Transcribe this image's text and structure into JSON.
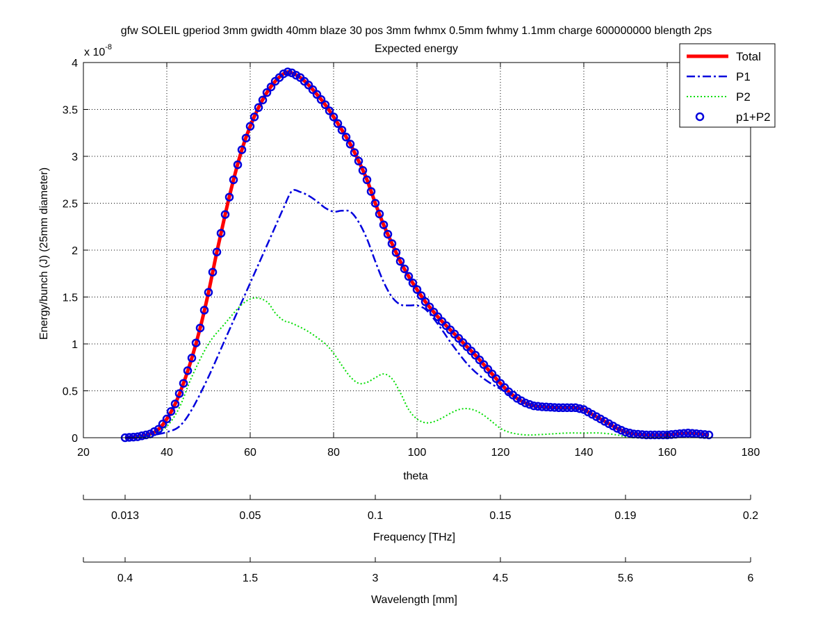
{
  "chart_data": {
    "type": "line",
    "title": "gfw SOLEIL gperiod 3mm gwidth 40mm blaze 30 pos 3mm fwhmx 0.5mm fwhmy 1.1mm charge 600000000 blength 2ps",
    "subtitle": "Expected energy",
    "xlabel": "theta",
    "ylabel": "Energy/bunch (J) (25mm diameter)",
    "y_exponent_base": "x 10",
    "y_exponent_power": "-8",
    "xlim": [
      20,
      180
    ],
    "ylim": [
      0,
      4
    ],
    "x_ticks": [
      20,
      40,
      60,
      80,
      100,
      120,
      140,
      160,
      180
    ],
    "y_ticks": [
      0,
      0.5,
      1,
      1.5,
      2,
      2.5,
      3,
      3.5,
      4
    ],
    "grid": true,
    "legend_position": "top-right",
    "secondary_axes": [
      {
        "label": "Frequency [THz]",
        "tick_positions_theta": [
          30,
          60,
          90,
          120,
          150,
          180
        ],
        "tick_labels": [
          "0.013",
          "0.05",
          "0.1",
          "0.15",
          "0.19",
          "0.2"
        ]
      },
      {
        "label": "Wavelength [mm]",
        "tick_positions_theta": [
          30,
          60,
          90,
          120,
          150,
          180
        ],
        "tick_labels": [
          "0.4",
          "1.5",
          "3",
          "4.5",
          "5.6",
          "6"
        ]
      }
    ],
    "series": [
      {
        "name": "Total",
        "color": "#ff0000",
        "style": "solid-thick",
        "points": [
          [
            30,
            0.0
          ],
          [
            33,
            0.01
          ],
          [
            36,
            0.04
          ],
          [
            38,
            0.09
          ],
          [
            40,
            0.2
          ],
          [
            42,
            0.36
          ],
          [
            44,
            0.58
          ],
          [
            46,
            0.85
          ],
          [
            48,
            1.17
          ],
          [
            50,
            1.55
          ],
          [
            52,
            1.98
          ],
          [
            54,
            2.38
          ],
          [
            56,
            2.75
          ],
          [
            58,
            3.07
          ],
          [
            60,
            3.32
          ],
          [
            62,
            3.52
          ],
          [
            64,
            3.68
          ],
          [
            66,
            3.8
          ],
          [
            68,
            3.88
          ],
          [
            69,
            3.9
          ],
          [
            70,
            3.89
          ],
          [
            72,
            3.84
          ],
          [
            74,
            3.76
          ],
          [
            76,
            3.66
          ],
          [
            78,
            3.55
          ],
          [
            80,
            3.42
          ],
          [
            82,
            3.28
          ],
          [
            84,
            3.13
          ],
          [
            86,
            2.95
          ],
          [
            88,
            2.75
          ],
          [
            90,
            2.5
          ],
          [
            92,
            2.27
          ],
          [
            94,
            2.07
          ],
          [
            96,
            1.88
          ],
          [
            98,
            1.72
          ],
          [
            100,
            1.58
          ],
          [
            102,
            1.45
          ],
          [
            104,
            1.34
          ],
          [
            106,
            1.24
          ],
          [
            108,
            1.15
          ],
          [
            110,
            1.06
          ],
          [
            112,
            0.97
          ],
          [
            114,
            0.88
          ],
          [
            116,
            0.78
          ],
          [
            118,
            0.68
          ],
          [
            120,
            0.58
          ],
          [
            122,
            0.49
          ],
          [
            124,
            0.42
          ],
          [
            126,
            0.37
          ],
          [
            128,
            0.34
          ],
          [
            130,
            0.33
          ],
          [
            134,
            0.32
          ],
          [
            138,
            0.32
          ],
          [
            140,
            0.3
          ],
          [
            142,
            0.25
          ],
          [
            144,
            0.2
          ],
          [
            146,
            0.15
          ],
          [
            148,
            0.1
          ],
          [
            150,
            0.06
          ],
          [
            152,
            0.04
          ],
          [
            155,
            0.03
          ],
          [
            160,
            0.03
          ],
          [
            165,
            0.05
          ],
          [
            170,
            0.03
          ]
        ]
      },
      {
        "name": "P1",
        "color": "#0000dd",
        "style": "dash-dot",
        "points": [
          [
            30,
            0.0
          ],
          [
            34,
            0.01
          ],
          [
            37,
            0.03
          ],
          [
            40,
            0.06
          ],
          [
            43,
            0.12
          ],
          [
            46,
            0.3
          ],
          [
            50,
            0.65
          ],
          [
            54,
            1.05
          ],
          [
            58,
            1.45
          ],
          [
            62,
            1.85
          ],
          [
            66,
            2.25
          ],
          [
            68,
            2.45
          ],
          [
            70,
            2.63
          ],
          [
            72,
            2.62
          ],
          [
            74,
            2.58
          ],
          [
            76,
            2.52
          ],
          [
            78,
            2.45
          ],
          [
            80,
            2.41
          ],
          [
            82,
            2.42
          ],
          [
            84,
            2.41
          ],
          [
            86,
            2.3
          ],
          [
            88,
            2.12
          ],
          [
            90,
            1.88
          ],
          [
            92,
            1.66
          ],
          [
            94,
            1.5
          ],
          [
            96,
            1.42
          ],
          [
            98,
            1.41
          ],
          [
            100,
            1.41
          ],
          [
            102,
            1.37
          ],
          [
            104,
            1.27
          ],
          [
            106,
            1.15
          ],
          [
            108,
            1.02
          ],
          [
            110,
            0.9
          ],
          [
            112,
            0.79
          ],
          [
            114,
            0.7
          ],
          [
            116,
            0.63
          ],
          [
            118,
            0.57
          ],
          [
            120,
            0.52
          ],
          [
            122,
            0.47
          ]
        ]
      },
      {
        "name": "P2",
        "color": "#00dd00",
        "style": "dotted",
        "points": [
          [
            30,
            0.0
          ],
          [
            34,
            0.01
          ],
          [
            37,
            0.04
          ],
          [
            40,
            0.12
          ],
          [
            43,
            0.32
          ],
          [
            46,
            0.65
          ],
          [
            50,
            1.0
          ],
          [
            54,
            1.22
          ],
          [
            58,
            1.42
          ],
          [
            61,
            1.49
          ],
          [
            64,
            1.45
          ],
          [
            66,
            1.33
          ],
          [
            68,
            1.25
          ],
          [
            70,
            1.22
          ],
          [
            74,
            1.13
          ],
          [
            78,
            1.0
          ],
          [
            80,
            0.9
          ],
          [
            82,
            0.77
          ],
          [
            84,
            0.65
          ],
          [
            86,
            0.58
          ],
          [
            88,
            0.59
          ],
          [
            90,
            0.64
          ],
          [
            92,
            0.68
          ],
          [
            94,
            0.63
          ],
          [
            96,
            0.48
          ],
          [
            98,
            0.3
          ],
          [
            100,
            0.2
          ],
          [
            102,
            0.16
          ],
          [
            104,
            0.17
          ],
          [
            106,
            0.21
          ],
          [
            108,
            0.26
          ],
          [
            110,
            0.3
          ],
          [
            112,
            0.31
          ],
          [
            114,
            0.29
          ],
          [
            116,
            0.24
          ],
          [
            118,
            0.17
          ],
          [
            120,
            0.1
          ],
          [
            122,
            0.06
          ],
          [
            124,
            0.04
          ],
          [
            126,
            0.03
          ],
          [
            128,
            0.03
          ],
          [
            132,
            0.04
          ],
          [
            136,
            0.05
          ],
          [
            140,
            0.05
          ],
          [
            144,
            0.05
          ],
          [
            148,
            0.03
          ],
          [
            150,
            0.01
          ],
          [
            152,
            0.0
          ]
        ]
      },
      {
        "name": "p1+P2",
        "color": "#0000dd",
        "style": "circles",
        "marker_step": 1.0,
        "points_ref": "Total"
      }
    ]
  }
}
